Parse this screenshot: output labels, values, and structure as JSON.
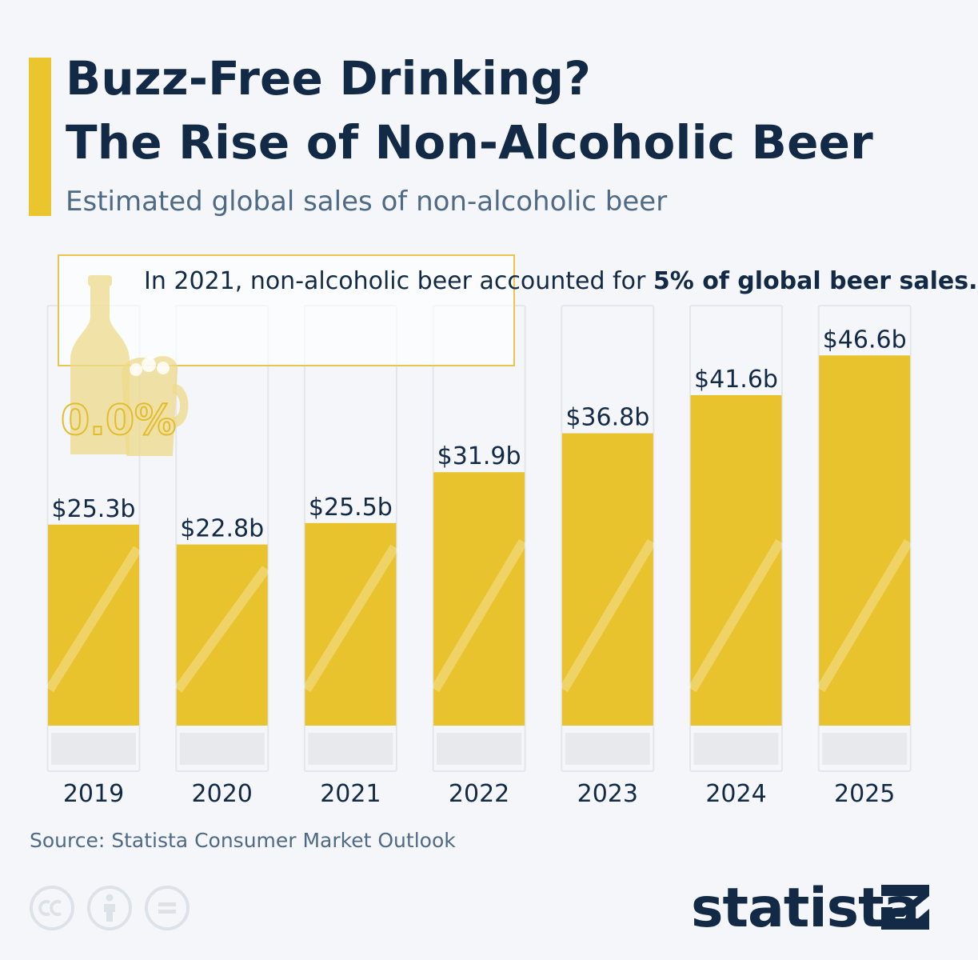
{
  "title_line1": "Buzz-Free Drinking?",
  "title_line2": "The Rise of Non-Alcoholic Beer",
  "subtitle": "Estimated global sales of non-alcoholic beer",
  "callout": {
    "text_normal": "In 2021, non-alcoholic beer accounted for ",
    "text_bold": "5% of global beer sales.",
    "badge": "0.0%"
  },
  "source": "Source: Statista Consumer Market Outlook",
  "logo": "statista",
  "license_icons": [
    "cc-icon",
    "attribution-icon",
    "no-derivatives-icon"
  ],
  "colors": {
    "bar": "#e9c32d",
    "text": "#132a46",
    "accent": "#eac52e",
    "background": "#f4f6f9"
  },
  "chart_data": {
    "type": "bar",
    "categories": [
      "2019",
      "2020",
      "2021",
      "2022",
      "2023",
      "2024",
      "2025"
    ],
    "values": [
      25.3,
      22.8,
      25.5,
      31.9,
      36.8,
      41.6,
      46.6
    ],
    "labels": [
      "$25.3b",
      "$22.8b",
      "$25.5b",
      "$31.9b",
      "$36.8b",
      "$41.6b",
      "$46.6b"
    ],
    "ylim": [
      0,
      55
    ],
    "grid": false,
    "legend": "none"
  }
}
